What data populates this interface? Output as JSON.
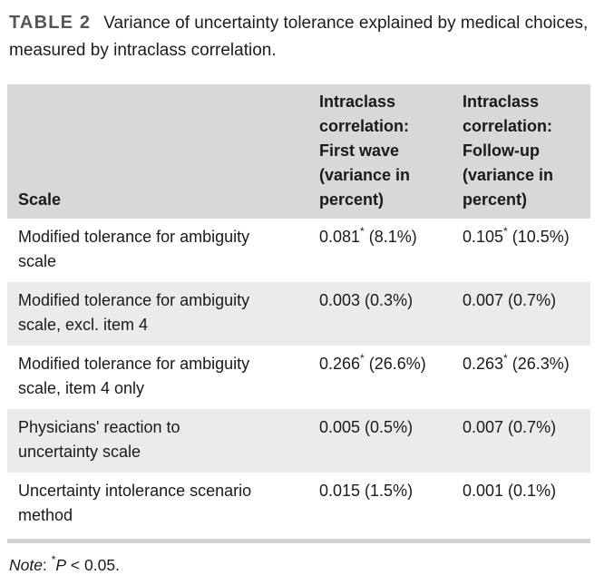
{
  "caption": {
    "label": "TABLE 2",
    "text": "Variance of uncertainty tolerance explained by medical choices, measured by intraclass correlation."
  },
  "table": {
    "headers": [
      "Scale",
      "Intraclass\ncorrelation:\nFirst wave\n(variance in\npercent)",
      "Intraclass\ncorrelation:\nFollow-up\n(variance in\npercent)"
    ],
    "rows": [
      {
        "scale": "Modified tolerance for ambiguity\nscale",
        "first_wave": {
          "value": "0.081",
          "star": "*",
          "pct": "(8.1%)"
        },
        "follow_up": {
          "value": "0.105",
          "star": "*",
          "pct": "(10.5%)"
        }
      },
      {
        "scale": "Modified tolerance for ambiguity\nscale, excl. item 4",
        "first_wave": {
          "value": "0.003",
          "star": "",
          "pct": "(0.3%)"
        },
        "follow_up": {
          "value": "0.007",
          "star": "",
          "pct": "(0.7%)"
        }
      },
      {
        "scale": "Modified tolerance for ambiguity\nscale, item 4 only",
        "first_wave": {
          "value": "0.266",
          "star": "*",
          "pct": "(26.6%)"
        },
        "follow_up": {
          "value": "0.263",
          "star": "*",
          "pct": "(26.3%)"
        }
      },
      {
        "scale": "Physicians' reaction to\nuncertainty scale",
        "first_wave": {
          "value": "0.005",
          "star": "",
          "pct": "(0.5%)"
        },
        "follow_up": {
          "value": "0.007",
          "star": "",
          "pct": "(0.7%)"
        }
      },
      {
        "scale": "Uncertainty intolerance scenario\nmethod",
        "first_wave": {
          "value": "0.015",
          "star": "",
          "pct": "(1.5%)"
        },
        "follow_up": {
          "value": "0.001",
          "star": "",
          "pct": "(0.1%)"
        }
      }
    ]
  },
  "note": {
    "word": "Note",
    "colon": ": ",
    "star": "*",
    "p": "P",
    "rest": " < 0.05."
  },
  "colors": {
    "header_bg": "#d8d8d8",
    "zebra_bg": "#ebebeb",
    "rule": "#d2d2d2",
    "label_text": "#55565a",
    "body_text": "#1a1a1a"
  }
}
